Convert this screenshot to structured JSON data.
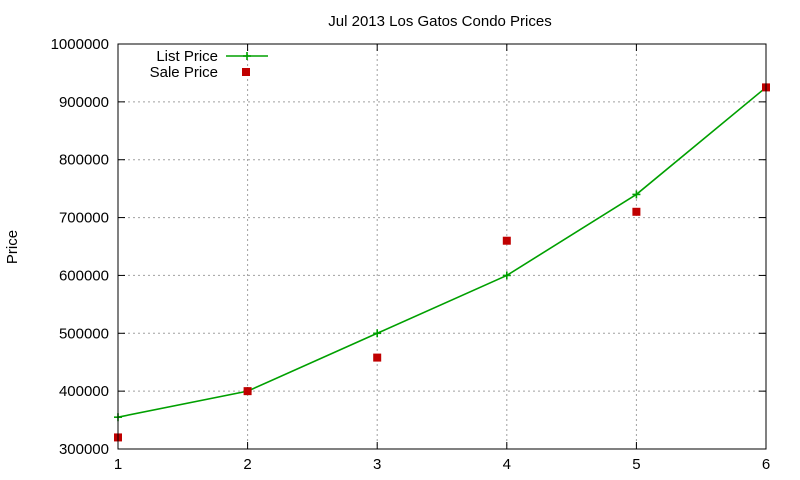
{
  "chart_data": {
    "type": "line",
    "title": "Jul 2013 Los Gatos Condo Prices",
    "xlabel": "",
    "ylabel": "Price",
    "xlim": [
      1,
      6
    ],
    "ylim": [
      300000,
      1000000
    ],
    "x_ticks": [
      "1",
      "2",
      "3",
      "4",
      "5",
      "6"
    ],
    "y_ticks": [
      "300000",
      "400000",
      "500000",
      "600000",
      "700000",
      "800000",
      "900000",
      "1000000"
    ],
    "grid": true,
    "legend_position": "top-left",
    "series": [
      {
        "name": "List Price",
        "style": "line with plus markers",
        "color": "#00a000",
        "x": [
          1,
          2,
          3,
          4,
          5,
          6
        ],
        "y": [
          355000,
          400000,
          500000,
          600000,
          740000,
          925000
        ]
      },
      {
        "name": "Sale Price",
        "style": "square markers",
        "color": "#c00000",
        "x": [
          1,
          2,
          3,
          4,
          5,
          6
        ],
        "y": [
          320000,
          400000,
          458000,
          660000,
          710000,
          925000
        ]
      }
    ]
  }
}
